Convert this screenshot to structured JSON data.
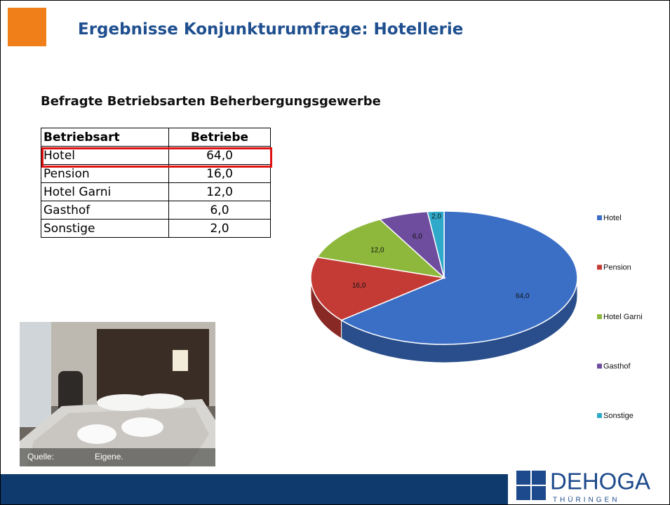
{
  "header": {
    "title": "Ergebnisse Konjunkturumfrage: Hotellerie"
  },
  "subtitle": "Befragte Betriebsarten Beherbergungsgewerbe",
  "table": {
    "columns": [
      "Betriebsart",
      "Betriebe"
    ],
    "rows": [
      [
        "Hotel",
        "64,0"
      ],
      [
        "Pension",
        "16,0"
      ],
      [
        "Hotel Garni",
        "12,0"
      ],
      [
        "Gasthof",
        "6,0"
      ],
      [
        "Sonstige",
        "2,0"
      ]
    ]
  },
  "photo_caption": [
    "Quelle:",
    "Eigene."
  ],
  "logo": {
    "name": "DEHOGA",
    "region": "THÜRINGEN"
  },
  "chart_data": {
    "type": "pie",
    "categories": [
      "Hotel",
      "Pension",
      "Hotel Garni",
      "Gasthof",
      "Sonstige"
    ],
    "values": [
      64,
      16,
      12,
      6,
      2
    ],
    "value_labels": [
      "64,0",
      "16,0",
      "12,0",
      "6,0",
      "2,0"
    ],
    "colors": [
      "#3b6fc6",
      "#c43b36",
      "#8db83c",
      "#6e4c9e",
      "#2ea9c9"
    ],
    "legend": "right"
  }
}
